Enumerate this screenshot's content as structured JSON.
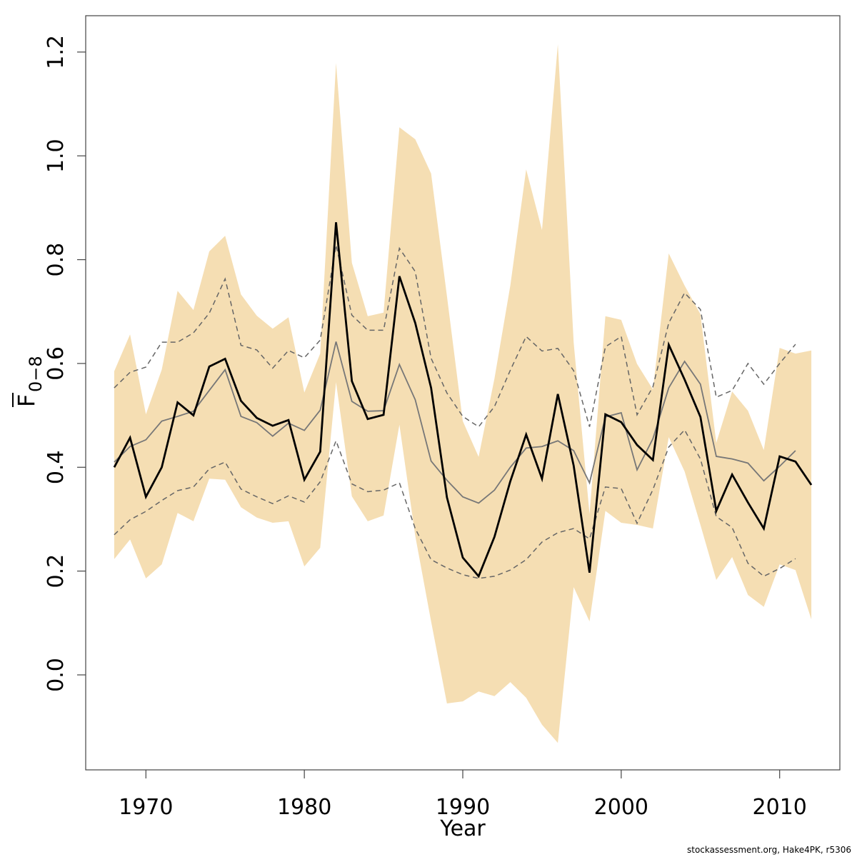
{
  "chart_data": {
    "type": "line",
    "xlabel": "Year",
    "ylabel": "F",
    "ylabel_sub": "0−8",
    "footer": "stockassessment.org, Hake4PK, r5306",
    "x": [
      1968,
      1969,
      1970,
      1971,
      1972,
      1973,
      1974,
      1975,
      1976,
      1977,
      1978,
      1979,
      1980,
      1981,
      1982,
      1983,
      1984,
      1985,
      1986,
      1987,
      1988,
      1989,
      1990,
      1991,
      1992,
      1993,
      1994,
      1995,
      1996,
      1997,
      1998,
      1999,
      2000,
      2001,
      2002,
      2003,
      2004,
      2005,
      2006,
      2007,
      2008,
      2009,
      2010,
      2011,
      2012
    ],
    "xlim": [
      1966.2,
      2013.8
    ],
    "xticks": [
      1970,
      1980,
      1990,
      2000,
      2010
    ],
    "ylim": [
      -0.183,
      1.27
    ],
    "yticks": [
      {
        "value": 0,
        "label": "0.0"
      },
      0.2,
      0.4,
      0.6,
      0.8,
      {
        "value": 1,
        "label": "1.0"
      },
      1.2
    ],
    "band": {
      "color": "#f5deb3",
      "upper": [
        0.585,
        0.656,
        0.502,
        0.588,
        0.74,
        0.703,
        0.816,
        0.846,
        0.733,
        0.692,
        0.667,
        0.689,
        0.544,
        0.619,
        1.179,
        0.794,
        0.691,
        0.698,
        1.055,
        1.032,
        0.966,
        0.73,
        0.489,
        0.42,
        0.571,
        0.75,
        0.974,
        0.857,
        1.215,
        0.64,
        0.31,
        0.691,
        0.684,
        0.599,
        0.55,
        0.812,
        0.75,
        0.695,
        0.447,
        0.546,
        0.509,
        0.433,
        0.63,
        0.619,
        0.625
      ],
      "lower": [
        0.223,
        0.261,
        0.186,
        0.213,
        0.312,
        0.296,
        0.378,
        0.376,
        0.323,
        0.303,
        0.293,
        0.296,
        0.209,
        0.245,
        0.564,
        0.344,
        0.296,
        0.307,
        0.482,
        0.268,
        0.103,
        -0.055,
        -0.051,
        -0.032,
        -0.041,
        -0.014,
        -0.044,
        -0.096,
        -0.131,
        0.169,
        0.103,
        0.316,
        0.293,
        0.289,
        0.282,
        0.458,
        0.392,
        0.289,
        0.183,
        0.227,
        0.154,
        0.131,
        0.213,
        0.202,
        0.107
      ]
    },
    "series": [
      {
        "color": "#666666",
        "dashed": true,
        "width": 1.5,
        "values": [
          0.553,
          0.583,
          0.593,
          0.641,
          0.641,
          0.659,
          0.697,
          0.763,
          0.635,
          0.626,
          0.591,
          0.625,
          0.611,
          0.645,
          0.828,
          0.693,
          0.664,
          0.664,
          0.822,
          0.777,
          0.61,
          0.543,
          0.498,
          0.478,
          0.517,
          0.587,
          0.652,
          0.624,
          0.629,
          0.586,
          0.478,
          0.632,
          0.652,
          0.501,
          0.555,
          0.678,
          0.736,
          0.704,
          0.535,
          0.548,
          0.6,
          0.56,
          0.6,
          0.637,
          null
        ]
      },
      {
        "color": "#666666",
        "dashed": true,
        "width": 1.5,
        "values": [
          0.27,
          0.299,
          0.315,
          0.336,
          0.355,
          0.362,
          0.397,
          0.41,
          0.358,
          0.343,
          0.33,
          0.345,
          0.333,
          0.372,
          0.451,
          0.368,
          0.353,
          0.356,
          0.37,
          0.282,
          0.222,
          0.206,
          0.193,
          0.186,
          0.19,
          0.202,
          0.222,
          0.256,
          0.274,
          0.282,
          0.262,
          0.362,
          0.359,
          0.292,
          0.357,
          0.439,
          0.472,
          0.416,
          0.305,
          0.284,
          0.215,
          0.19,
          0.205,
          0.224,
          null
        ]
      },
      {
        "color": "#777777",
        "dashed": false,
        "width": 1.8,
        "values": [
          0.41,
          0.44,
          0.453,
          0.489,
          0.498,
          0.508,
          0.548,
          0.588,
          0.498,
          0.486,
          0.46,
          0.485,
          0.471,
          0.51,
          0.642,
          0.527,
          0.508,
          0.509,
          0.598,
          0.53,
          0.412,
          0.375,
          0.343,
          0.331,
          0.356,
          0.4,
          0.437,
          0.44,
          0.451,
          0.432,
          0.37,
          0.497,
          0.505,
          0.395,
          0.455,
          0.553,
          0.604,
          0.56,
          0.421,
          0.416,
          0.408,
          0.374,
          0.402,
          0.432,
          null
        ]
      },
      {
        "color": "#000000",
        "dashed": false,
        "width": 2.8,
        "values": [
          0.4,
          0.457,
          0.343,
          0.4,
          0.525,
          0.5,
          0.594,
          0.609,
          0.528,
          0.495,
          0.48,
          0.491,
          0.376,
          0.43,
          0.872,
          0.566,
          0.493,
          0.501,
          0.768,
          0.678,
          0.553,
          0.342,
          0.226,
          0.19,
          0.266,
          0.373,
          0.463,
          0.378,
          0.541,
          0.403,
          0.197,
          0.502,
          0.487,
          0.443,
          0.414,
          0.636,
          0.569,
          0.497,
          0.316,
          0.386,
          0.332,
          0.282,
          0.421,
          0.411,
          0.366
        ]
      }
    ]
  }
}
